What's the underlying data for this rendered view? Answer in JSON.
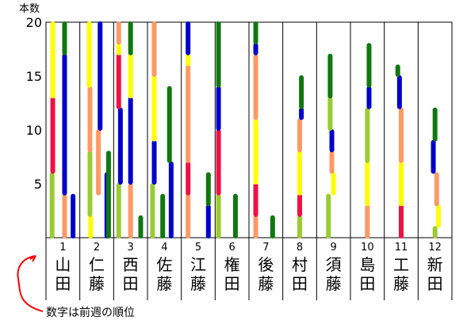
{
  "chart_data": {
    "type": "bar",
    "ylabel": "本数",
    "yticks": [
      "5",
      "10",
      "15",
      "20"
    ],
    "ylim": [
      0,
      20
    ],
    "grid": "vertical",
    "categories": [
      {
        "rank": "1",
        "name": "山田"
      },
      {
        "rank": "2",
        "name": "仁藤"
      },
      {
        "rank": "3",
        "name": "西田"
      },
      {
        "rank": "4",
        "name": "佐藤"
      },
      {
        "rank": "5",
        "name": "江藤"
      },
      {
        "rank": "6",
        "name": "権田"
      },
      {
        "rank": "7",
        "name": "後藤"
      },
      {
        "rank": "8",
        "name": "村田"
      },
      {
        "rank": "9",
        "name": "須藤"
      },
      {
        "rank": "10",
        "name": "島田"
      },
      {
        "rank": "11",
        "name": "工藤"
      },
      {
        "rank": "12",
        "name": "新田"
      }
    ],
    "values": [
      20,
      20,
      20,
      20,
      20,
      20,
      20,
      15,
      17,
      18,
      16,
      12
    ],
    "colors": {
      "yellow": "#ffff00",
      "green": "#117711",
      "blue": "#0000cc",
      "red": "#ee1144",
      "salmon": "#ff9966",
      "lime": "#99cc33"
    },
    "note": "数字は前週の順位",
    "note_arrow_color": "#ff0000"
  }
}
